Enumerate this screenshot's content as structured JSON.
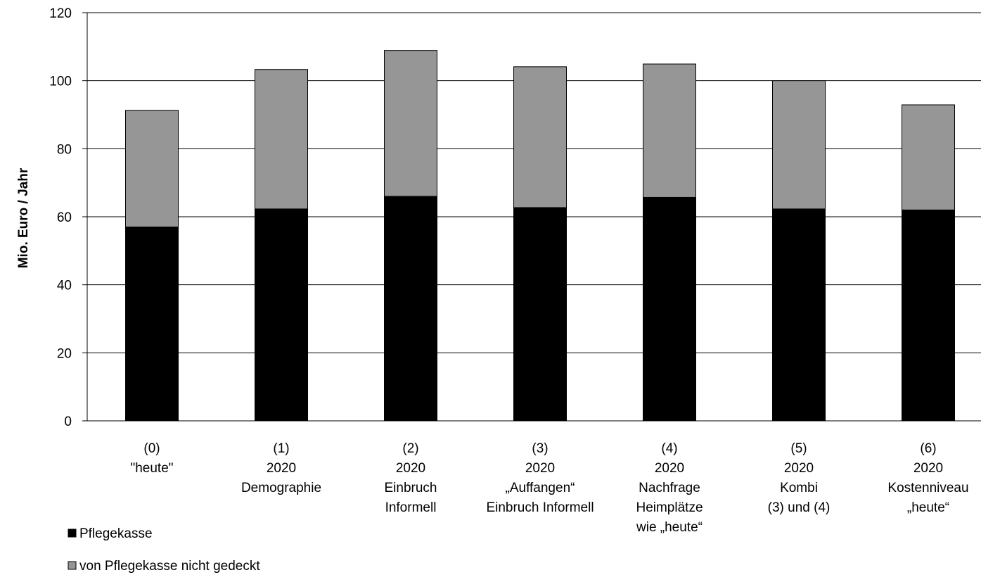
{
  "chart_data": {
    "type": "bar",
    "stacked": true,
    "ylabel": "Mio. Euro / Jahr",
    "ylim": [
      0,
      120
    ],
    "yticks": [
      0,
      20,
      40,
      60,
      80,
      100,
      120
    ],
    "grid": true,
    "legend_position": "bottom-left",
    "categories": [
      [
        "(0)",
        "\"heute\""
      ],
      [
        "(1)",
        "2020",
        "Demographie"
      ],
      [
        "(2)",
        "2020",
        "Einbruch",
        "Informell"
      ],
      [
        "(3)",
        "2020",
        "„Auffangen“",
        "Einbruch Informell"
      ],
      [
        "(4)",
        "2020",
        "Nachfrage",
        "Heimplätze",
        "wie „heute“"
      ],
      [
        "(5)",
        "2020",
        "Kombi",
        "(3) und (4)"
      ],
      [
        "(6)",
        "2020",
        "Kostenniveau",
        "„heute“"
      ]
    ],
    "series": [
      {
        "name": "Pflegekasse",
        "color": "#000000",
        "values": [
          57,
          62.3,
          66,
          62.7,
          65.7,
          62.3,
          62
        ]
      },
      {
        "name": "von Pflegekasse nicht gedeckt",
        "color": "#969696",
        "values": [
          34.3,
          41,
          42.9,
          41.4,
          39.2,
          37.7,
          30.9
        ]
      }
    ]
  }
}
